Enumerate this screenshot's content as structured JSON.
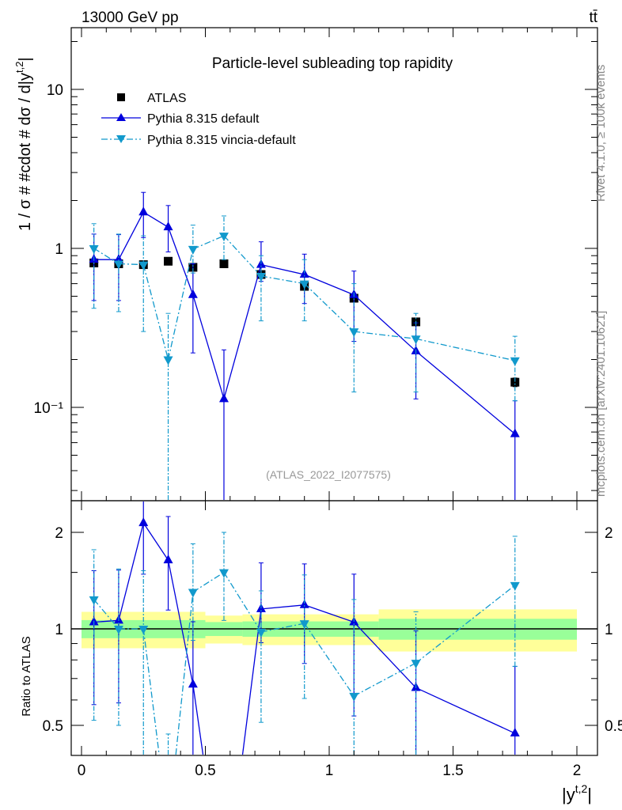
{
  "chart_data": {
    "type": "scatter",
    "title": "Particle-level subleading top rapidity",
    "header_left": "13000 GeV pp",
    "header_right": "tt̄",
    "side_label_top": "Rivet 4.1.0, ≥ 100k events",
    "side_label_bottom": "mcplots.cern.ch [arXiv:2401.10621]",
    "analysis_label": "(ATLAS_2022_I2077575)",
    "ylabel": "1 / σ # #cdot # dσ / d|y^{t,2}|",
    "ylabel_main": "1 / σ # #cdot # dσ / d|y",
    "ylabel_sup": "t,2",
    "ylabel_end": "|",
    "ratio_ylabel": "Ratio to ATLAS",
    "xlabel_main": "|y",
    "xlabel_sup": "t,2",
    "xlabel_end": "|",
    "xlim": [
      -0.05,
      2.08
    ],
    "ylim": [
      0.0259,
      24.4
    ],
    "yscale": "log",
    "ratio_ylim": [
      0.403,
      2.51
    ],
    "x_ticks": [
      "0",
      "0.5",
      "1",
      "1.5",
      "2"
    ],
    "y_ticks": [
      "10",
      "1",
      "10⁻¹"
    ],
    "ratio_ticks": [
      "2",
      "1",
      "0.5"
    ],
    "x": [
      0.05,
      0.15,
      0.25,
      0.35,
      0.45,
      0.575,
      0.725,
      0.9,
      1.1,
      1.35,
      1.75
    ],
    "band_edges": [
      0,
      0.5,
      0.65,
      1.2,
      1.5,
      2.0
    ],
    "band_yellow": [
      0.13,
      0.1,
      0.11,
      0.15,
      0.15
    ],
    "band_green": [
      0.065,
      0.05,
      0.055,
      0.075,
      0.075
    ],
    "series": [
      {
        "name": "ATLAS",
        "color": "#000000",
        "marker": "square",
        "values": [
          0.81,
          0.8,
          0.79,
          0.83,
          0.76,
          0.8,
          0.685,
          0.577,
          0.486,
          0.345,
          0.144
        ],
        "err_lo": [
          0.79,
          0.78,
          0.77,
          0.81,
          0.74,
          0.78,
          0.665,
          0.56,
          0.47,
          0.33,
          0.135
        ],
        "err_hi": [
          0.83,
          0.82,
          0.81,
          0.85,
          0.78,
          0.82,
          0.705,
          0.595,
          0.5,
          0.36,
          0.153
        ]
      },
      {
        "name": "Pythia 8.315 default",
        "color": "#0000dd",
        "marker": "triangle-up",
        "line": "solid",
        "values": [
          0.85,
          0.85,
          1.69,
          1.36,
          0.51,
          0.113,
          0.79,
          0.685,
          0.51,
          0.226,
          0.068
        ],
        "err_lo": [
          0.47,
          0.47,
          1.17,
          0.95,
          0.22,
          0.01,
          0.62,
          0.45,
          0.26,
          0.113,
          0.01
        ],
        "err_hi": [
          1.23,
          1.22,
          2.25,
          1.86,
          0.8,
          0.23,
          1.1,
          0.92,
          0.72,
          0.34,
          0.11
        ]
      },
      {
        "name": "Pythia 8.315 vincia-default",
        "color": "#1199cc",
        "marker": "triangle-down",
        "line": "dashdot",
        "values": [
          1.0,
          0.8,
          0.79,
          0.2,
          0.99,
          1.2,
          0.67,
          0.6,
          0.3,
          0.27,
          0.197
        ],
        "err_lo": [
          0.42,
          0.4,
          0.3,
          0.01,
          0.7,
          0.85,
          0.35,
          0.35,
          0.125,
          0.125,
          0.11
        ],
        "err_hi": [
          1.43,
          1.23,
          1.2,
          0.39,
          1.4,
          1.6,
          0.9,
          0.85,
          0.6,
          0.39,
          0.28
        ]
      }
    ]
  }
}
